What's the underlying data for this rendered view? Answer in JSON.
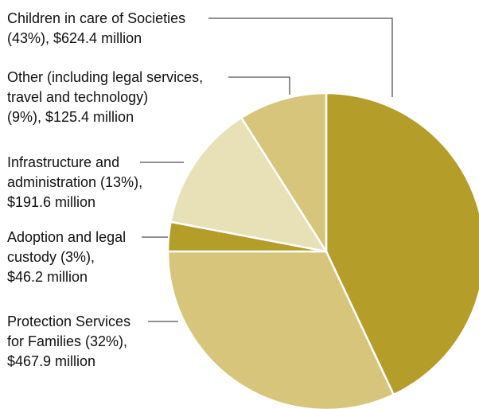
{
  "chart_data": {
    "type": "pie",
    "start": "12 o'clock",
    "direction": "clockwise",
    "slices": [
      {
        "lines": [
          "Children in care of Societies",
          "(43%), $624.4 million"
        ],
        "category": "Children in care of Societies",
        "percent": 43,
        "amount_millions": 624.4,
        "color": "#b59d2a"
      },
      {
        "lines": [
          "Protection Services",
          "for Families (32%),",
          "$467.9 million"
        ],
        "category": "Protection Services for Families",
        "percent": 32,
        "amount_millions": 467.9,
        "color": "#d6c57a"
      },
      {
        "lines": [
          "Adoption and legal",
          "custody (3%),",
          "$46.2 million"
        ],
        "category": "Adoption and legal custody",
        "percent": 3,
        "amount_millions": 46.2,
        "color": "#b59d2a"
      },
      {
        "lines": [
          "Infrastructure and",
          "administration (13%),",
          "$191.6 million"
        ],
        "category": "Infrastructure and administration",
        "percent": 13,
        "amount_millions": 191.6,
        "color": "#e8e0b6"
      },
      {
        "lines": [
          "Other (including legal services,",
          "travel and technology)",
          "(9%), $125.4 million"
        ],
        "category": "Other (including legal services, travel and technology)",
        "percent": 9,
        "amount_millions": 125.4,
        "color": "#d6c57a"
      }
    ]
  }
}
